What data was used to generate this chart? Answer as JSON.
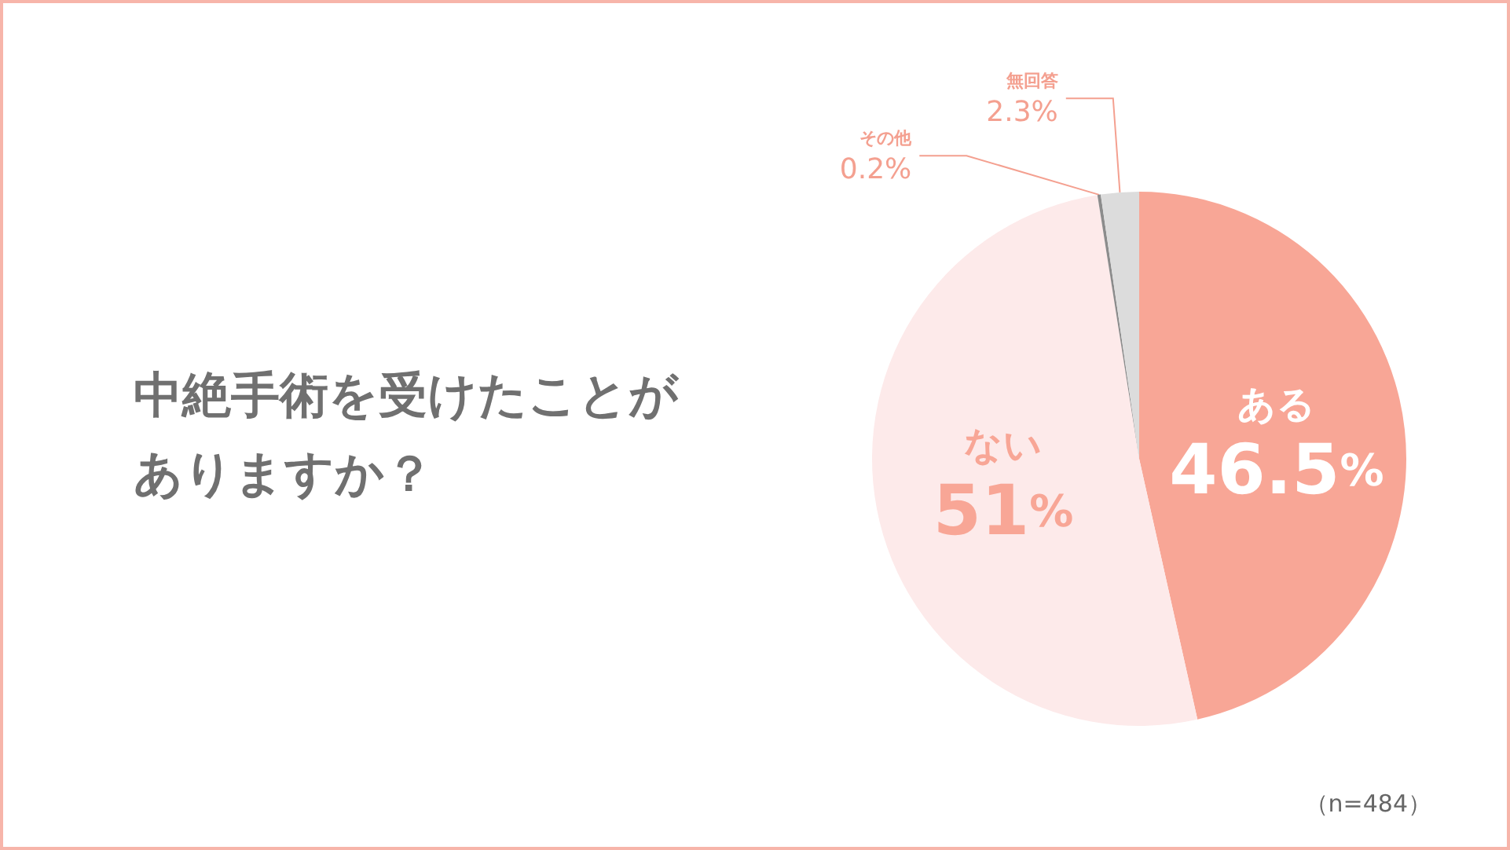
{
  "chart_data": {
    "type": "pie",
    "title": "中絶手術を受けたことがありますか？",
    "categories": [
      "ある",
      "ない",
      "その他",
      "無回答"
    ],
    "values": [
      46.5,
      51,
      0.2,
      2.3
    ],
    "value_labels": [
      "46.5%",
      "51%",
      "0.2%",
      "2.3%"
    ],
    "colors": [
      "#f8a696",
      "#fdeaea",
      "#8c8c8c",
      "#dcdcdc"
    ],
    "annotations": [
      "（n=484）"
    ],
    "legend": false
  }
}
